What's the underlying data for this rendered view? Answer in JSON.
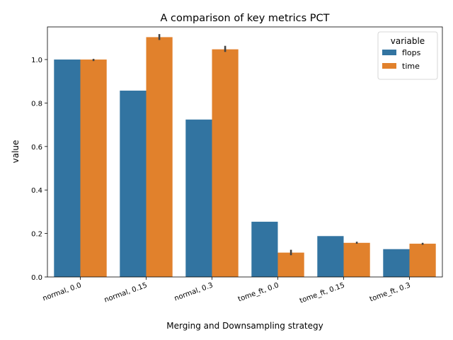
{
  "chart_data": {
    "type": "bar",
    "title": "A comparison of key metrics PCT",
    "xlabel": "Merging and Downsampling strategy",
    "ylabel": "value",
    "ylim": [
      0,
      1.15
    ],
    "yticks": [
      "0.0",
      "0.2",
      "0.4",
      "0.6",
      "0.8",
      "1.0"
    ],
    "categories": [
      "normal, 0.0",
      "normal, 0.15",
      "normal, 0.3",
      "tome_ft, 0.0",
      "tome_ft, 0.15",
      "tome_ft, 0.3"
    ],
    "legend": {
      "title": "variable",
      "position": "top-right"
    },
    "grid": false,
    "series": [
      {
        "name": "flops",
        "color": "#3274a1",
        "values": [
          1.0,
          0.857,
          0.724,
          0.254,
          0.188,
          0.128
        ]
      },
      {
        "name": "time",
        "color": "#e1812c",
        "values": [
          1.0,
          1.103,
          1.047,
          0.112,
          0.157,
          0.153
        ],
        "error": [
          [
            0.993,
            1.003
          ],
          [
            1.09,
            1.117
          ],
          [
            1.035,
            1.063
          ],
          [
            0.1,
            0.125
          ],
          [
            0.153,
            0.162
          ],
          [
            0.148,
            0.157
          ]
        ]
      }
    ]
  }
}
